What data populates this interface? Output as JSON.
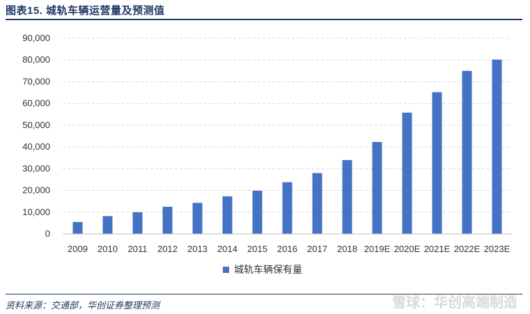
{
  "figure": {
    "title": "图表15.  城轨车辆运营量及预测值",
    "source": "资料来源：交通部，华创证券整理预测",
    "watermark": "雪球：华创高端制造"
  },
  "chart_data": {
    "type": "bar",
    "title": "",
    "xlabel": "",
    "ylabel": "",
    "categories": [
      "2009",
      "2010",
      "2011",
      "2012",
      "2013",
      "2014",
      "2015",
      "2016",
      "2017",
      "2018",
      "2019E",
      "2020E",
      "2021E",
      "2022E",
      "2023E"
    ],
    "series": [
      {
        "name": "城轨车辆保有量",
        "color": "#4472c4",
        "values": [
          5500,
          8200,
          10000,
          12500,
          14300,
          17300,
          19900,
          23800,
          28000,
          34000,
          42300,
          55800,
          65200,
          75000,
          80200
        ]
      }
    ],
    "ylim": [
      0,
      90000
    ],
    "yticks": [
      0,
      10000,
      20000,
      30000,
      40000,
      50000,
      60000,
      70000,
      80000,
      90000
    ],
    "ytick_labels": [
      "0",
      "10,000",
      "20,000",
      "30,000",
      "40,000",
      "50,000",
      "60,000",
      "70,000",
      "80,000",
      "90,000"
    ],
    "grid": true,
    "legend_position": "bottom-center"
  }
}
